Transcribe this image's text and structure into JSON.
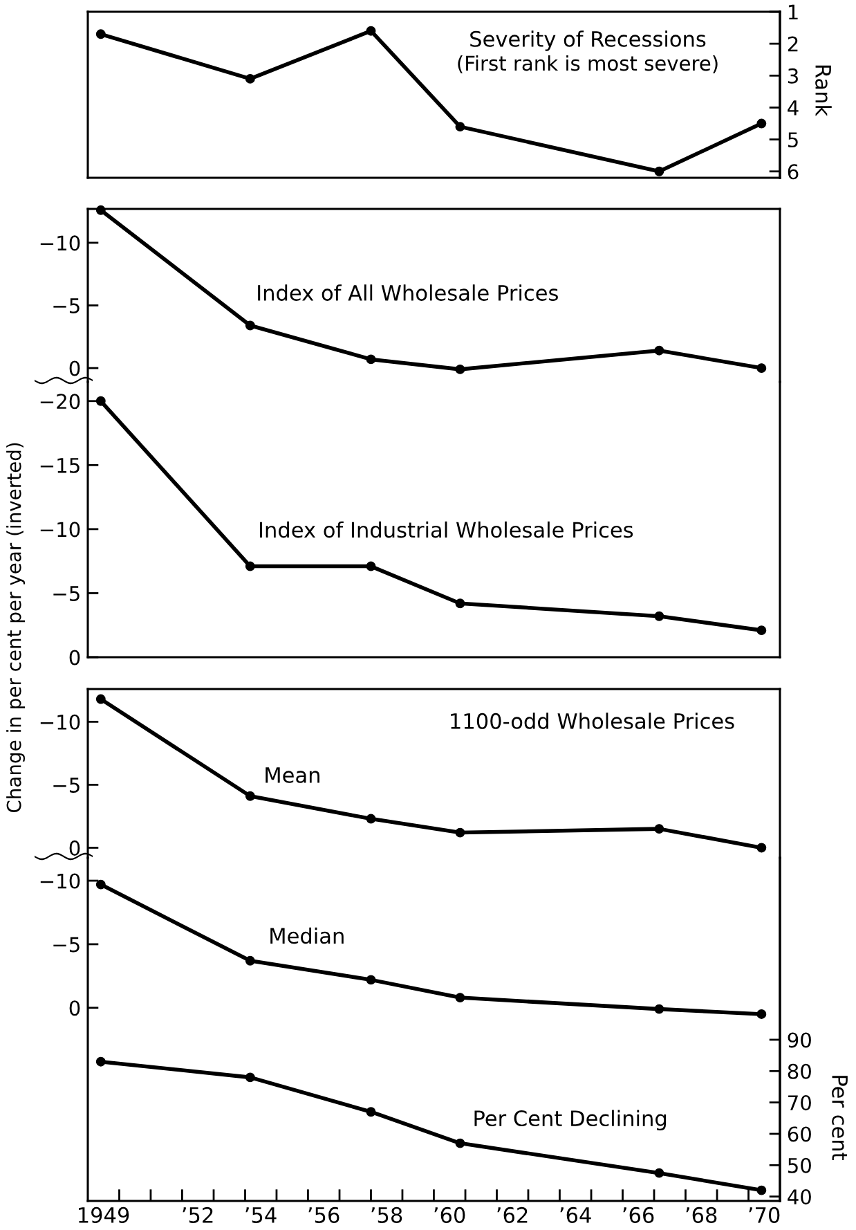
{
  "chart_data": [
    {
      "type": "line",
      "title": "Severity of Recessions",
      "subtitle": "(First rank is most severe)",
      "y2label": "Rank",
      "x": [
        "1949-06",
        "1954-03",
        "1958-01",
        "1960-11",
        "1967-03",
        "1970-06"
      ],
      "series": [
        {
          "color": "#000000",
          "axis": "y2",
          "values": [
            1.7,
            3.1,
            1.6,
            4.6,
            6.0,
            4.5
          ]
        }
      ],
      "xlim": [
        "1949",
        "1971"
      ],
      "y2lim": [
        6.2,
        1
      ],
      "y2ticks": [
        1,
        2,
        3,
        4,
        5,
        6
      ],
      "tick_labels": "y2",
      "marker": "circle",
      "line_style": "solid"
    },
    {
      "type": "line",
      "x": [
        "1949-06",
        "1954-03",
        "1958-01",
        "1960-11",
        "1967-03",
        "1970-06"
      ],
      "series": [
        {
          "name": "Index of All Wholesale Prices",
          "color": "#000000",
          "values": [
            -12.6,
            -3.4,
            -0.7,
            0.1,
            -1.4,
            0.0
          ]
        }
      ],
      "xlim": [
        "1949",
        "1971"
      ],
      "ylim": [
        1.1,
        -12.7
      ],
      "yticks": [
        -10,
        -5,
        0
      ],
      "tick_labels": "y",
      "marker": "circle",
      "line_style": "solid"
    },
    {
      "type": "line",
      "ylabel": "Change in per cent per year (inverted)",
      "x": [
        "1949-06",
        "1954-03",
        "1958-01",
        "1960-11",
        "1967-03",
        "1970-06"
      ],
      "series": [
        {
          "name": "Index of Industrial Wholesale Prices",
          "color": "#000000",
          "values": [
            -20.0,
            -7.1,
            -7.1,
            -4.2,
            -3.2,
            -2.1
          ]
        }
      ],
      "xlim": [
        "1949",
        "1971"
      ],
      "ylim": [
        0,
        -21.5
      ],
      "yticks": [
        -20,
        -15,
        -10,
        -5,
        0
      ],
      "tick_labels": "y",
      "marker": "circle",
      "line_style": "solid"
    },
    {
      "type": "line",
      "title": "1100-odd Wholesale Prices",
      "x": [
        "1949-06",
        "1954-03",
        "1958-01",
        "1960-11",
        "1967-03",
        "1970-06"
      ],
      "series": [
        {
          "name": "Mean",
          "color": "#000000",
          "values": [
            -11.8,
            -4.1,
            -2.3,
            -1.2,
            -1.5,
            0.0
          ]
        }
      ],
      "xlim": [
        "1949",
        "1971"
      ],
      "ylim": [
        0.8,
        -12.6
      ],
      "yticks": [
        -10,
        -5,
        0
      ],
      "tick_labels": "y",
      "marker": "circle",
      "line_style": "solid"
    },
    {
      "type": "line",
      "y2label": "Per cent",
      "x": [
        "1949-06",
        "1954-03",
        "1958-01",
        "1960-11",
        "1967-03",
        "1970-06"
      ],
      "series": [
        {
          "name": "Median",
          "color": "#000000",
          "values": [
            -9.7,
            -3.7,
            -2.2,
            -0.8,
            0.1,
            0.5
          ]
        },
        {
          "name": "Per Cent Declining",
          "color": "#000000",
          "axis": "y2",
          "values": [
            83,
            78,
            67,
            57,
            47.5,
            42
          ]
        }
      ],
      "xlim": [
        "1949",
        "1971"
      ],
      "xticks": [
        {
          "value": "1949-07",
          "label": "1949"
        },
        {
          "value": "1952-07",
          "label": "’52"
        },
        {
          "value": "1954-07",
          "label": "’54"
        },
        {
          "value": "1956-07",
          "label": "’56"
        },
        {
          "value": "1958-07",
          "label": "’58"
        },
        {
          "value": "1960-07",
          "label": "’60"
        },
        {
          "value": "1962-07",
          "label": "’62"
        },
        {
          "value": "1964-07",
          "label": "’64"
        },
        {
          "value": "1966-07",
          "label": "’66"
        },
        {
          "value": "1968-07",
          "label": "’68"
        },
        {
          "value": "1970-07",
          "label": "’70"
        }
      ],
      "ylim": [
        15.2,
        -11.8
      ],
      "yticks": [
        -10,
        -5,
        0
      ],
      "y2lim": [
        38.6,
        148
      ],
      "y2ticks": [
        40,
        50,
        60,
        70,
        80,
        90
      ],
      "marker": "circle",
      "line_style": "solid"
    }
  ]
}
